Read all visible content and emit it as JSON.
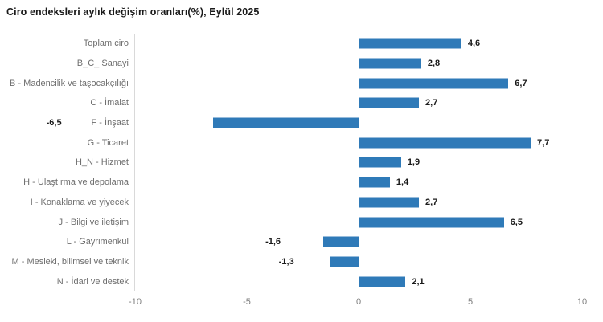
{
  "chart_data": {
    "type": "bar",
    "orientation": "horizontal",
    "title": "Ciro endeksleri aylık değişim oranları(%), Eylül 2025",
    "categories": [
      "Toplam ciro",
      "B_C_ Sanayi",
      "B - Madencilik ve taşocakçılığı",
      "C - İmalat",
      "F - İnşaat",
      "G - Ticaret",
      "H_N - Hizmet",
      "H - Ulaştırma ve depolama",
      "I - Konaklama ve yiyecek",
      "J - Bilgi ve iletişim",
      "L - Gayrimenkul",
      "M - Mesleki, bilimsel ve teknik",
      "N - İdari ve destek"
    ],
    "values": [
      4.6,
      2.8,
      6.7,
      2.7,
      -6.5,
      7.7,
      1.9,
      1.4,
      2.7,
      6.5,
      -1.6,
      -1.3,
      2.1
    ],
    "value_labels": [
      "4,6",
      "2,8",
      "6,7",
      "2,7",
      "-6,5",
      "7,7",
      "1,9",
      "1,4",
      "2,7",
      "6,5",
      "-1,6",
      "-1,3",
      "2,1"
    ],
    "xlabel": "",
    "ylabel": "",
    "xlim": [
      -10,
      10
    ],
    "x_ticks": [
      -10,
      -5,
      0,
      5,
      10
    ],
    "x_tick_labels": [
      "-10",
      "-5",
      "0",
      "5",
      "10"
    ],
    "grid": false,
    "legend": "none",
    "bar_color": "#2f7ab8",
    "label_color": "#6e6e6e",
    "tick_color": "#7f7f7f",
    "axis_line_color": "#d9d9d9"
  }
}
